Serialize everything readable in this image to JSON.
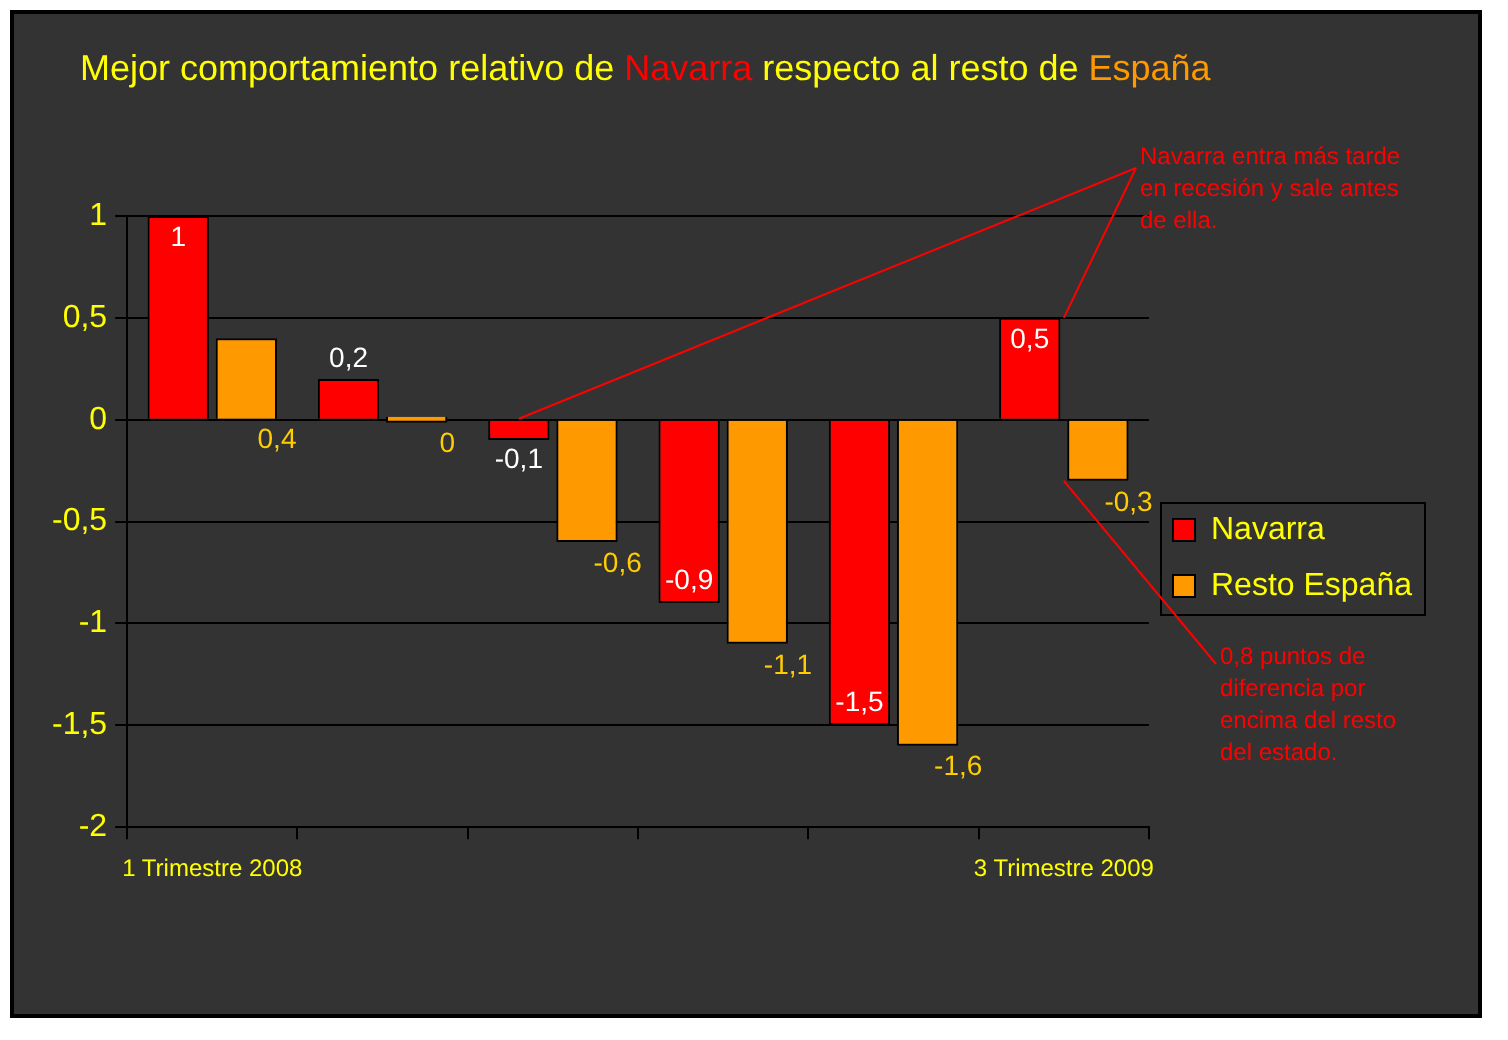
{
  "chart_data": {
    "type": "bar",
    "title": "Mejor comportamiento relativo de Navarra respecto al resto de España",
    "categories": [
      "1 Trimestre 2008",
      null,
      null,
      null,
      null,
      "3 Trimestre 2009"
    ],
    "series": [
      {
        "name": "Navarra",
        "color": "#ff0000",
        "values": [
          1,
          0.2,
          -0.1,
          -0.9,
          -1.5,
          0.5
        ],
        "value_labels": [
          "1",
          "0,2",
          "-0,1",
          "-0,9",
          "-1,5",
          "0,5"
        ]
      },
      {
        "name": "Resto España",
        "color": "#ff9900",
        "values": [
          0.4,
          0,
          -0.6,
          -1.1,
          -1.6,
          -0.3
        ],
        "value_labels": [
          "0,4",
          "0",
          "-0,6",
          "-1,1",
          "-1,6",
          "-0,3"
        ]
      }
    ],
    "ylim": [
      -2,
      1
    ],
    "yticks": [
      -2,
      {
        "value": -1.5,
        "label": "-1,5"
      },
      -1,
      {
        "value": -0.5,
        "label": "-0,5"
      },
      0,
      {
        "value": 0.5,
        "label": "0,5"
      },
      1
    ],
    "grid": "y",
    "legend": "right",
    "annotations": [
      {
        "text": "Navarra entra más tarde en recesión y sale antes de ella.",
        "x": "3 Trimestre 2009",
        "y": 0.5
      },
      {
        "text": "0,8 puntos de diferencia por encima del resto del estado.",
        "x": "3 Trimestre 2009",
        "y": -0.3
      }
    ]
  }
}
